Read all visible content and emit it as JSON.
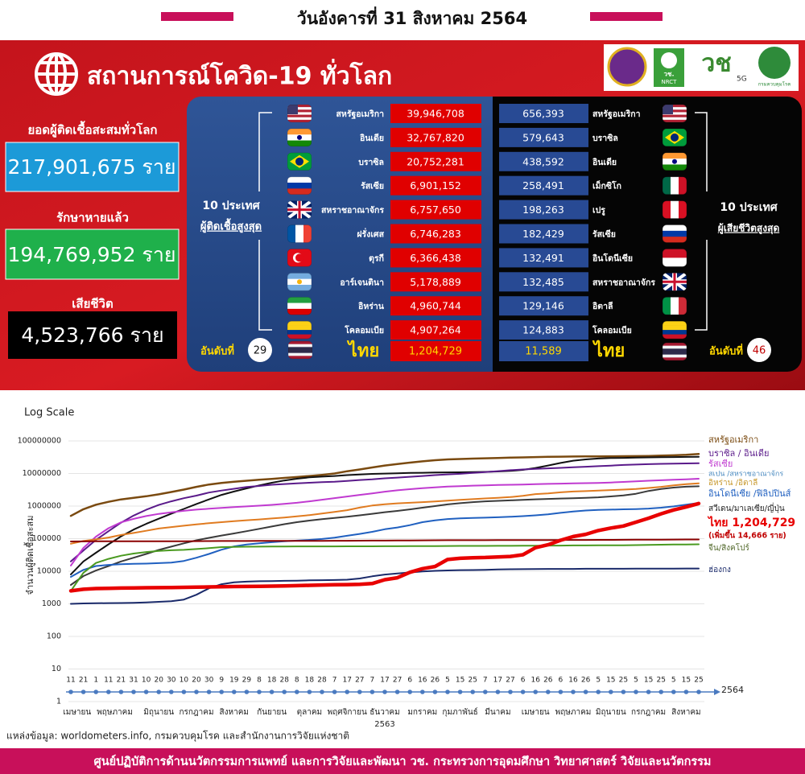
{
  "header": {
    "date": "วันอังคารที่ 31 สิงหาคม 2564"
  },
  "banner": {
    "title": "สถานการณ์โควิด-19 ทั่วโลก",
    "logo_texts": [
      "วช.",
      "NRCT",
      "วช",
      "5G",
      "กรมควบคุมโรค"
    ]
  },
  "summary": [
    {
      "label": "ยอดผู้ติดเชื้อสะสมทั่วโลก",
      "value": "217,901,675 ราย"
    },
    {
      "label": "รักษาหายแล้ว",
      "value": "194,769,952 ราย"
    },
    {
      "label": "เสียชีวิต",
      "value": "4,523,766 ราย"
    }
  ],
  "infections": {
    "heading": [
      "10 ประเทศ",
      "ผู้ติดเชื้อสูงสุด"
    ],
    "rows": [
      {
        "country": "สหรัฐอเมริกา",
        "value": "39,946,708"
      },
      {
        "country": "อินเดีย",
        "value": "32,767,820"
      },
      {
        "country": "บราซิล",
        "value": "20,752,281"
      },
      {
        "country": "รัสเซีย",
        "value": "6,901,152"
      },
      {
        "country": "สหราชอาณาจักร",
        "value": "6,757,650"
      },
      {
        "country": "ฝรั่งเศส",
        "value": "6,746,283"
      },
      {
        "country": "ตุรกี",
        "value": "6,366,438"
      },
      {
        "country": "อาร์เจนตินา",
        "value": "5,178,889"
      },
      {
        "country": "อิหร่าน",
        "value": "4,960,744"
      },
      {
        "country": "โคลอมเบีย",
        "value": "4,907,264"
      }
    ],
    "thailand": {
      "rank_label": "อันดับที่",
      "rank": 29,
      "country": "ไทย",
      "value": "1,204,729"
    }
  },
  "deaths": {
    "heading": [
      "10 ประเทศ",
      "ผู้เสียชีวิตสูงสุด"
    ],
    "rows": [
      {
        "country": "สหรัฐอเมริกา",
        "value": "656,393"
      },
      {
        "country": "บราซิล",
        "value": "579,643"
      },
      {
        "country": "อินเดีย",
        "value": "438,592"
      },
      {
        "country": "เม็กซิโก",
        "value": "258,491"
      },
      {
        "country": "เปรู",
        "value": "198,263"
      },
      {
        "country": "รัสเซีย",
        "value": "182,429"
      },
      {
        "country": "อินโดนีเซีย",
        "value": "132,491"
      },
      {
        "country": "สหราชอาณาจักร",
        "value": "132,485"
      },
      {
        "country": "อิตาลี",
        "value": "129,146"
      },
      {
        "country": "โคลอมเบีย",
        "value": "124,883"
      }
    ],
    "thailand": {
      "rank_label": "อันดับที่",
      "rank": 46,
      "country": "ไทย",
      "value": "11,589"
    }
  },
  "chart_data": {
    "type": "line",
    "title": "Log Scale",
    "log_scale": true,
    "ylabel": "จำนวนผู้ติดเชื้อสะสม",
    "months": [
      {
        "name": "เมษายน",
        "days": [
          "11",
          "21"
        ]
      },
      {
        "name": "พฤษภาคม",
        "days": [
          "1",
          "11",
          "21",
          "31"
        ]
      },
      {
        "name": "มิถุนายน",
        "days": [
          "10",
          "20",
          "30"
        ]
      },
      {
        "name": "กรกฎาคม",
        "days": [
          "10",
          "20",
          "30"
        ]
      },
      {
        "name": "สิงหาคม",
        "days": [
          "9",
          "19",
          "29"
        ]
      },
      {
        "name": "กันยายน",
        "days": [
          "8",
          "18",
          "28"
        ]
      },
      {
        "name": "ตุลาคม",
        "days": [
          "8",
          "18",
          "28"
        ]
      },
      {
        "name": "พฤศจิกายน",
        "days": [
          "7",
          "17",
          "27"
        ]
      },
      {
        "name": "ธันวาคม",
        "days": [
          "7",
          "17",
          "27"
        ],
        "year": "2563"
      },
      {
        "name": "มกราคม",
        "days": [
          "6",
          "16",
          "26"
        ]
      },
      {
        "name": "กุมภาพันธ์",
        "days": [
          "5",
          "15",
          "25"
        ]
      },
      {
        "name": "มีนาคม",
        "days": [
          "7",
          "17",
          "27"
        ]
      },
      {
        "name": "เมษายน",
        "days": [
          "6",
          "16",
          "26"
        ]
      },
      {
        "name": "พฤษภาคม",
        "days": [
          "6",
          "16",
          "26"
        ]
      },
      {
        "name": "มิถุนายน",
        "days": [
          "5",
          "15",
          "25"
        ]
      },
      {
        "name": "กรกฎาคม",
        "days": [
          "5",
          "15",
          "25"
        ]
      },
      {
        "name": "สิงหาคม",
        "days": [
          "5",
          "15",
          "25"
        ]
      }
    ],
    "axis_year": "2564",
    "ylim": [
      1,
      100000000
    ],
    "yticks": [
      1,
      10,
      100,
      1000,
      10000,
      100000,
      1000000,
      10000000,
      100000000
    ],
    "grid": true,
    "series": [
      {
        "color": "#7a4a10",
        "width": 2.5,
        "values": [
          500000.0,
          800000.0,
          1100000.0,
          1350000.0,
          1600000.0,
          1800000.0,
          2000000.0,
          2300000.0,
          2700000.0,
          3200000.0,
          3900000.0,
          4600000.0,
          5100000.0,
          5600000.0,
          6000000.0,
          6400000.0,
          6800000.0,
          7300000.0,
          7800000.0,
          8400000.0,
          9100000.0,
          10000000.0,
          11700000.0,
          13300000.0,
          15300000.0,
          17600000.0,
          19500000.0,
          21600000.0,
          23600000.0,
          25500000.0,
          27000000.0,
          27900000.0,
          28600000.0,
          29300000.0,
          29900000.0,
          30600000.0,
          31200000.0,
          31900000.0,
          32500000.0,
          32900000.0,
          33200000.0,
          33400000.0,
          33600000.0,
          33700000.0,
          33900000.0,
          34100000.0,
          34600000.0,
          35300000.0,
          36200000.0,
          37500000.0,
          39900000.0
        ]
      },
      {
        "color": "#111111",
        "width": 2,
        "values": [
          8000.0,
          20000.0,
          37000.0,
          67000.0,
          118000.0,
          190000.0,
          285000.0,
          410000.0,
          585000.0,
          820000.0,
          1160000.0,
          1600000.0,
          2200000.0,
          2800000.0,
          3500000.0,
          4300000.0,
          5200000.0,
          6100000.0,
          6900000.0,
          7600000.0,
          8000000.0,
          8400000.0,
          8900000.0,
          9350000.0,
          9700000.0,
          9950000.0,
          10200000.0,
          10400000.0,
          10550000.0,
          10700000.0,
          10800000.0,
          10900000.0,
          11050000.0,
          11200000.0,
          11500000.0,
          12000000.0,
          12900000.0,
          14800000.0,
          17600000.0,
          21100000.0,
          24700000.0,
          27000000.0,
          28800000.0,
          29800000.0,
          30100000.0,
          30800000.0,
          31200000.0,
          31500000.0,
          31900000.0,
          32300000.0,
          32700000.0
        ]
      },
      {
        "color": "#5a1a8a",
        "width": 2,
        "values": [
          20000.0,
          43000.0,
          92000.0,
          170000.0,
          310000.0,
          510000.0,
          770000.0,
          1080000.0,
          1400000.0,
          1750000.0,
          2100000.0,
          2600000.0,
          3000000.0,
          3400000.0,
          3850000.0,
          4150000.0,
          4500000.0,
          4750000.0,
          5000000.0,
          5200000.0,
          5450000.0,
          5600000.0,
          5900000.0,
          6300000.0,
          6600000.0,
          7100000.0,
          7500000.0,
          7900000.0,
          8400000.0,
          8900000.0,
          9400000.0,
          9800000.0,
          10400000.0,
          11100000.0,
          11800000.0,
          12600000.0,
          13300000.0,
          13900000.0,
          14400000.0,
          14900000.0,
          15500000.0,
          16100000.0,
          16800000.0,
          17500000.0,
          18300000.0,
          18800000.0,
          19300000.0,
          19800000.0,
          20100000.0,
          20400000.0,
          20700000.0
        ]
      },
      {
        "color": "#c03ad0",
        "width": 2,
        "values": [
          15000.0,
          52000.0,
          115000.0,
          210000.0,
          317000.0,
          405000.0,
          494000.0,
          577000.0,
          647000.0,
          713000.0,
          777000.0,
          828000.0,
          880000.0,
          930000.0,
          980000.0,
          1030000.0,
          1090000.0,
          1170000.0,
          1260000.0,
          1400000.0,
          1570000.0,
          1760000.0,
          1970000.0,
          2200000.0,
          2460000.0,
          2760000.0,
          3050000.0,
          3300000.0,
          3550000.0,
          3770000.0,
          3960000.0,
          4100000.0,
          4230000.0,
          4330000.0,
          4430000.0,
          4500000.0,
          4600000.0,
          4700000.0,
          4800000.0,
          4880000.0,
          4970000.0,
          5050000.0,
          5150000.0,
          5300000.0,
          5500000.0,
          5750000.0,
          6000000.0,
          6200000.0,
          6400000.0,
          6600000.0,
          6900000.0
        ]
      },
      {
        "color": "#e07b20",
        "width": 2,
        "values": [
          70000.0,
          85000.0,
          95000.0,
          108000.0,
          130000.0,
          150000.0,
          175000.0,
          205000.0,
          227000.0,
          250000.0,
          275000.0,
          298000.0,
          320000.0,
          345000.0,
          368000.0,
          390000.0,
          416000.0,
          446000.0,
          484000.0,
          530000.0,
          588000.0,
          660000.0,
          750000.0,
          900000.0,
          1040000.0,
          1140000.0,
          1210000.0,
          1260000.0,
          1320000.0,
          1390000.0,
          1470000.0,
          1550000.0,
          1630000.0,
          1720000.0,
          1800000.0,
          1890000.0,
          2070000.0,
          2330000.0,
          2460000.0,
          2650000.0,
          2800000.0,
          2880000.0,
          3000000.0,
          3100000.0,
          3200000.0,
          3350000.0,
          3600000.0,
          3900000.0,
          4300000.0,
          4700000.0,
          5000000.0
        ]
      },
      {
        "color": "#3a3a3a",
        "width": 2,
        "values": [
          3800.0,
          7100.0,
          10500.0,
          14400.0,
          20000.0,
          26000.0,
          34000.0,
          45000.0,
          57000.0,
          72000.0,
          89000.0,
          106000.0,
          125000.0,
          145000.0,
          170000.0,
          200000.0,
          236000.0,
          279000.0,
          320000.0,
          360000.0,
          397000.0,
          430000.0,
          470000.0,
          520000.0,
          580000.0,
          650000.0,
          710000.0,
          790000.0,
          890000.0,
          1000000.0,
          1130000.0,
          1230000.0,
          1320000.0,
          1400000.0,
          1450000.0,
          1500000.0,
          1560000.0,
          1610000.0,
          1660000.0,
          1710000.0,
          1750000.0,
          1800000.0,
          1860000.0,
          1980000.0,
          2120000.0,
          2380000.0,
          2910000.0,
          3330000.0,
          3690000.0,
          3930000.0,
          4060000.0
        ]
      },
      {
        "color": "#2060c0",
        "width": 2,
        "values": [
          6700.0,
          11000.0,
          14500.0,
          15700.0,
          16500.0,
          16900.0,
          17200.0,
          17800.0,
          18500.0,
          20700.0,
          26000.0,
          34000.0,
          46000.0,
          58000.0,
          66000.0,
          72000.0,
          78000.0,
          83000.0,
          87000.0,
          92000.0,
          98000.0,
          107000.0,
          123000.0,
          140000.0,
          162000.0,
          195000.0,
          220000.0,
          260000.0,
          320000.0,
          365000.0,
          400000.0,
          420000.0,
          430000.0,
          440000.0,
          455000.0,
          470000.0,
          490000.0,
          520000.0,
          560000.0,
          620000.0,
          680000.0,
          730000.0,
          760000.0,
          780000.0,
          795000.0,
          810000.0,
          840000.0,
          890000.0,
          980000.0,
          1100000.0,
          1250000.0
        ]
      },
      {
        "color": "#8b0000",
        "width": 2,
        "values": [
          82000.0,
          82400.0,
          82800.0,
          82900.0,
          83000.0,
          83000.0,
          83100.0,
          83400.0,
          83500.0,
          83600.0,
          84000.0,
          84500.0,
          84800.0,
          84900.0,
          85000.0,
          85100.0,
          85200.0,
          85400.0,
          85600.0,
          85800.0,
          86000.0,
          86200.0,
          86500.0,
          86800.0,
          87000.0,
          87200.0,
          87500.0,
          88000.0,
          88700.0,
          89200.0,
          89600.0,
          89800.0,
          89900.0,
          90000.0,
          90100.0,
          90300.0,
          90500.0,
          90700.0,
          90900.0,
          91100.0,
          91300.0,
          91500.0,
          91700.0,
          92000.0,
          92400.0,
          92700.0,
          93000.0,
          93500.0,
          94000.0,
          94300.0,
          94600.0
        ]
      },
      {
        "color": "#4a9a20",
        "width": 2,
        "values": [
          2500.0,
          9000.0,
          18000.0,
          24000.0,
          30000.0,
          35000.0,
          39000.0,
          42000.0,
          44000.0,
          45500.0,
          48000.0,
          51000.0,
          55000.0,
          56000.0,
          56500.0,
          57000.0,
          57400.0,
          57600.0,
          57800.0,
          57900.0,
          58000.0,
          58100.0,
          58200.0,
          58300.0,
          58400.0,
          58500.0,
          58600.0,
          58800.0,
          59000.0,
          59300.0,
          59600.0,
          59800.0,
          59900.0,
          60000.0,
          60200.0,
          60400.0,
          60600.0,
          60800.0,
          61200.0,
          61500.0,
          62000.0,
          62200.0,
          62400.0,
          62700.0,
          62900.0,
          63300.0,
          64500.0,
          65400.0,
          66000.0,
          66500.0,
          67000.0
        ]
      },
      {
        "color": "#1a2a6a",
        "width": 2,
        "values": [
          1000.0,
          1030.0,
          1040.0,
          1050.0,
          1060.0,
          1070.0,
          1100.0,
          1150.0,
          1200.0,
          1350.0,
          1900.0,
          3000.0,
          4000.0,
          4600.0,
          4800.0,
          4950.0,
          5000.0,
          5070.0,
          5150.0,
          5250.0,
          5330.0,
          5380.0,
          5500.0,
          6000.0,
          7000.0,
          7900.0,
          8600.0,
          9200.0,
          9900.0,
          10300.0,
          10600.0,
          10800.0,
          10900.0,
          11100.0,
          11400.0,
          11500.0,
          11600.0,
          11700.0,
          11800.0,
          11800.0,
          11800.0,
          11900.0,
          11900.0,
          11900.0,
          11900.0,
          12000.0,
          12000.0,
          12000.0,
          12000.0,
          12100.0,
          12100.0
        ]
      },
      {
        "color": "#e80000",
        "width": 4.5,
        "values": [
          2500.0,
          2800.0,
          2950.0,
          3000.0,
          3040.0,
          3080.0,
          3120.0,
          3140.0,
          3170.0,
          3200.0,
          3250.0,
          3300.0,
          3350.0,
          3400.0,
          3420.0,
          3450.0,
          3500.0,
          3560.0,
          3620.0,
          3700.0,
          3780.0,
          3850.0,
          3900.0,
          3980.0,
          4200.0,
          5500.0,
          6300.0,
          9300.0,
          12000.0,
          14000.0,
          23000.0,
          25000.0,
          26000.0,
          26500.0,
          27500.0,
          28500.0,
          32000.0,
          53000.0,
          65000.0,
          89000.0,
          116000.0,
          136000.0,
          178000.0,
          212000.0,
          244000.0,
          320000.0,
          424000.0,
          580000.0,
          760000.0,
          940000.0,
          1200000.0
        ]
      }
    ],
    "annotations": [
      {
        "text": "สหรัฐอเมริกา",
        "color": "#7a4a10"
      },
      {
        "text": "บราซิล / อินเดีย",
        "color": "#5a1a8a"
      },
      {
        "text": "รัสเซีย",
        "color": "#c03ad0"
      },
      {
        "text": "สเปน /สหราชอาณาจักร",
        "color": "#4a8ac0"
      },
      {
        "text": "อิหร่าน /อิตาลี",
        "color": "#c89a30"
      },
      {
        "text": "อินโดนีเซีย /ฟิลิปปินส์",
        "color": "#2060c0"
      },
      {
        "text": "สวีเดน/มาเลเซีย/ญี่ปุ่น",
        "color": "#222222"
      },
      {
        "text": "ไทย 1,204,729",
        "color": "#e80000"
      },
      {
        "text": "(เพิ่มขึ้น 14,666 ราย)",
        "color": "#c00000"
      },
      {
        "text": "จีน/สิงคโปร์",
        "color": "#556b2f"
      },
      {
        "text": "ฮ่องกง",
        "color": "#1a2a6a"
      }
    ]
  },
  "source": "แหล่งข้อมูล: worldometers.info, กรมควบคุมโรค และสำนักงานการวิจัยแห่งชาติ",
  "footer": "ศูนย์ปฏิบัติการด้านนวัตกรรมการแพทย์ และการวิจัยและพัฒนา วช.  กระทรวงการอุดมศึกษา วิทยาศาสตร์ วิจัยและนวัตกรรม"
}
